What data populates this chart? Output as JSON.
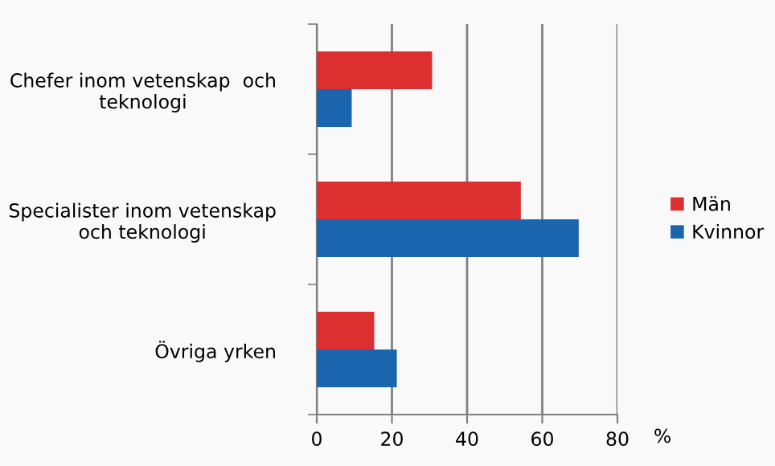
{
  "chart_data": {
    "type": "bar",
    "orientation": "horizontal",
    "categories": [
      "Chefer inom vetenskap  och\nteknologi",
      "Specialister inom vetenskap\noch teknologi",
      "Övriga yrken"
    ],
    "series": [
      {
        "name": "Män",
        "color": "#dc3030",
        "values": [
          30.7,
          54.3,
          15.3
        ]
      },
      {
        "name": "Kvinnor",
        "color": "#1b64ae",
        "values": [
          9.3,
          69.7,
          21.3
        ]
      }
    ],
    "xlabel": "%",
    "xlim": [
      0,
      80
    ],
    "xticks": [
      0,
      20,
      40,
      60,
      80
    ],
    "grid": "x",
    "legend": "right"
  }
}
